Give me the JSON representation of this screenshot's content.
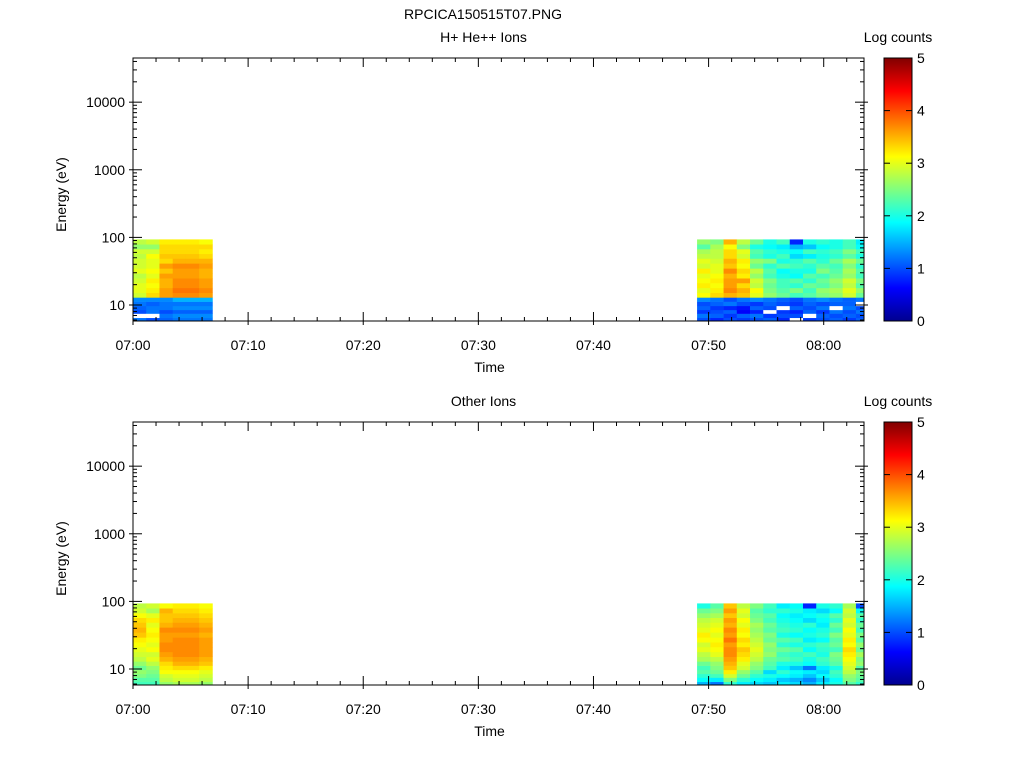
{
  "figure": {
    "title": "RPCICA150515T07.PNG"
  },
  "colormap": {
    "name": "jet",
    "stops": [
      "#00008f",
      "#0000ff",
      "#00ffff",
      "#ffff00",
      "#ff0000",
      "#800000"
    ],
    "empty_color": "#ffffff"
  },
  "chart_data": [
    {
      "type": "heatmap",
      "title": "H+ He++ Ions",
      "xlabel": "Time",
      "ylabel": "Energy (eV)",
      "xticks": [
        "07:00",
        "07:10",
        "07:20",
        "07:30",
        "07:40",
        "07:50",
        "08:00"
      ],
      "xlim_minutes": [
        0,
        63.5
      ],
      "yscale": "log",
      "ylim": [
        5.8,
        45000
      ],
      "yticks": [
        10,
        100,
        1000,
        10000
      ],
      "ytick_labels": [
        "10",
        "100",
        "1000",
        "10000"
      ],
      "colorbar": {
        "label": "Log counts",
        "range": [
          0,
          5
        ],
        "ticks": [
          "0",
          "1",
          "2",
          "3",
          "4",
          "5"
        ]
      },
      "energy_bins": [
        6,
        7,
        8,
        9,
        10.5,
        12,
        14,
        16.5,
        19.5,
        23,
        27,
        32,
        38,
        45,
        53,
        62,
        73,
        86
      ],
      "time_blocks": [
        {
          "start_minute": 0,
          "columns": [
            [
              1.2,
              null,
              1.0,
              1.1,
              1.2,
              1.3,
              2.9,
              3.0,
              3.0,
              2.9,
              2.8,
              3.0,
              2.9,
              2.9,
              2.8,
              2.9,
              2.6,
              2.8
            ],
            [
              1.0,
              null,
              1.2,
              1.2,
              1.1,
              1.3,
              3.3,
              3.2,
              3.1,
              3.2,
              3.0,
              3.1,
              3.0,
              3.0,
              3.1,
              2.9,
              2.6,
              2.9
            ],
            [
              1.1,
              1.2,
              1.0,
              1.2,
              1.2,
              1.3,
              3.6,
              3.6,
              3.5,
              3.5,
              3.6,
              3.4,
              3.6,
              3.3,
              3.4,
              3.3,
              3.3,
              3.2
            ],
            [
              1.2,
              1.3,
              1.1,
              1.3,
              1.2,
              1.5,
              3.7,
              3.8,
              3.7,
              3.7,
              3.6,
              3.6,
              3.7,
              3.5,
              3.4,
              3.3,
              3.3,
              3.2
            ],
            [
              1.2,
              1.3,
              1.1,
              1.3,
              1.2,
              1.5,
              3.7,
              3.8,
              3.7,
              3.7,
              3.6,
              3.6,
              3.7,
              3.5,
              3.4,
              3.3,
              3.3,
              3.2
            ],
            [
              1.2,
              1.3,
              1.1,
              1.3,
              1.2,
              1.5,
              3.6,
              3.7,
              3.6,
              3.6,
              3.5,
              3.5,
              3.6,
              3.5,
              3.3,
              3.2,
              3.3,
              3.1
            ]
          ]
        },
        {
          "start_minute": 49,
          "columns": [
            [
              1.0,
              1.2,
              0.9,
              1.1,
              1.0,
              1.3,
              3.1,
              3.0,
              3.2,
              3.1,
              3.0,
              3.2,
              2.9,
              3.0,
              2.8,
              2.7,
              2.3,
              2.6
            ],
            [
              0.8,
              1.1,
              1.0,
              0.9,
              1.1,
              1.2,
              3.3,
              3.2,
              3.1,
              3.2,
              3.1,
              3.0,
              3.0,
              2.9,
              2.8,
              2.8,
              2.7,
              2.5
            ],
            [
              1.0,
              0.9,
              1.1,
              0.8,
              1.2,
              1.0,
              3.5,
              3.7,
              3.6,
              3.6,
              3.5,
              3.7,
              3.4,
              3.5,
              3.3,
              3.3,
              3.1,
              3.5
            ],
            [
              0.9,
              1.1,
              0.6,
              0.7,
              1.0,
              1.2,
              3.4,
              3.5,
              3.3,
              3.6,
              3.2,
              3.3,
              3.1,
              3.2,
              2.9,
              3.0,
              2.5,
              2.8
            ],
            [
              1.0,
              1.2,
              0.8,
              1.1,
              0.9,
              1.3,
              3.0,
              3.1,
              2.8,
              2.9,
              2.6,
              2.8,
              2.4,
              2.6,
              2.2,
              2.3,
              2.0,
              2.4
            ],
            [
              1.1,
              0.9,
              null,
              1.0,
              1.1,
              1.2,
              2.6,
              2.5,
              2.4,
              2.5,
              2.2,
              2.3,
              2.1,
              2.5,
              2.0,
              2.1,
              1.9,
              2.0
            ],
            [
              0.8,
              1.0,
              0.9,
              null,
              1.0,
              1.1,
              2.4,
              2.3,
              2.2,
              2.2,
              2.0,
              1.9,
              2.3,
              2.0,
              2.2,
              2.0,
              1.8,
              2.2
            ],
            [
              null,
              1.0,
              0.8,
              1.1,
              0.9,
              1.0,
              2.2,
              2.5,
              2.1,
              2.3,
              1.9,
              2.0,
              2.2,
              2.1,
              1.7,
              1.9,
              1.5,
              0.8
            ],
            [
              0.9,
              null,
              1.1,
              1.0,
              1.1,
              1.2,
              2.3,
              2.2,
              2.4,
              2.1,
              2.3,
              2.0,
              2.1,
              2.3,
              1.8,
              2.2,
              1.6,
              2.0
            ],
            [
              1.0,
              1.1,
              0.9,
              1.2,
              1.0,
              1.3,
              2.5,
              2.6,
              2.3,
              2.4,
              2.2,
              2.5,
              2.3,
              2.1,
              2.0,
              2.1,
              1.9,
              2.1
            ],
            [
              1.1,
              1.0,
              1.2,
              null,
              1.1,
              1.2,
              2.6,
              2.7,
              2.5,
              2.6,
              2.4,
              2.3,
              2.2,
              2.4,
              2.1,
              2.2,
              2.0,
              2.0
            ],
            [
              0.9,
              1.1,
              1.0,
              1.2,
              1.1,
              1.1,
              2.9,
              3.0,
              2.8,
              2.9,
              2.6,
              2.7,
              2.5,
              2.7,
              2.3,
              2.5,
              2.2,
              2.2
            ],
            [
              1.1,
              1.0,
              1.2,
              1.0,
              null,
              1.2,
              2.4,
              2.6,
              2.3,
              2.5,
              2.2,
              2.3,
              2.1,
              2.4,
              2.0,
              2.2,
              1.9,
              1.8
            ]
          ]
        }
      ]
    },
    {
      "type": "heatmap",
      "title": "Other Ions",
      "xlabel": "Time",
      "ylabel": "Energy (eV)",
      "xticks": [
        "07:00",
        "07:10",
        "07:20",
        "07:30",
        "07:40",
        "07:50",
        "08:00"
      ],
      "xlim_minutes": [
        0,
        63.5
      ],
      "yscale": "log",
      "ylim": [
        5.8,
        45000
      ],
      "yticks": [
        10,
        100,
        1000,
        10000
      ],
      "ytick_labels": [
        "10",
        "100",
        "1000",
        "10000"
      ],
      "colorbar": {
        "label": "Log counts",
        "range": [
          0,
          5
        ],
        "ticks": [
          "0",
          "1",
          "2",
          "3",
          "4",
          "5"
        ]
      },
      "energy_bins": [
        6,
        7,
        8,
        9,
        10.5,
        12,
        14,
        16.5,
        19.5,
        23,
        27,
        32,
        38,
        45,
        53,
        62,
        73,
        86
      ],
      "time_blocks": [
        {
          "start_minute": 0,
          "columns": [
            [
              2.2,
              2.3,
              2.5,
              2.6,
              2.4,
              2.6,
              2.8,
              2.9,
              3.0,
              3.1,
              3.2,
              3.4,
              3.5,
              3.4,
              3.3,
              3.1,
              2.9,
              2.8
            ],
            [
              2.2,
              2.3,
              2.4,
              2.5,
              2.6,
              2.8,
              3.0,
              2.9,
              3.1,
              3.0,
              3.1,
              3.2,
              3.1,
              3.0,
              3.2,
              3.0,
              2.7,
              2.9
            ],
            [
              2.6,
              2.8,
              2.9,
              3.1,
              3.2,
              3.3,
              3.5,
              3.6,
              3.7,
              3.7,
              3.6,
              3.6,
              3.7,
              3.5,
              3.4,
              3.4,
              3.5,
              3.1
            ],
            [
              2.7,
              2.9,
              3.0,
              3.1,
              3.3,
              3.5,
              3.6,
              3.7,
              3.7,
              3.7,
              3.7,
              3.6,
              3.7,
              3.6,
              3.5,
              3.4,
              3.3,
              3.2
            ],
            [
              2.7,
              2.9,
              3.0,
              3.1,
              3.3,
              3.5,
              3.6,
              3.7,
              3.7,
              3.7,
              3.7,
              3.6,
              3.7,
              3.6,
              3.5,
              3.4,
              3.3,
              3.2
            ],
            [
              2.6,
              2.8,
              2.9,
              3.0,
              3.2,
              3.4,
              3.5,
              3.6,
              3.6,
              3.6,
              3.6,
              3.5,
              3.6,
              3.5,
              3.4,
              3.3,
              3.2,
              3.1
            ]
          ]
        },
        {
          "start_minute": 49,
          "columns": [
            [
              1.5,
              1.9,
              2.1,
              2.3,
              2.2,
              2.4,
              2.7,
              2.8,
              3.0,
              2.9,
              3.1,
              3.2,
              3.0,
              2.9,
              2.8,
              2.6,
              2.4,
              2.0
            ],
            [
              1.2,
              1.8,
              2.2,
              2.4,
              2.5,
              2.6,
              2.8,
              3.0,
              3.1,
              3.2,
              3.1,
              3.0,
              3.1,
              3.0,
              2.9,
              2.7,
              2.5,
              2.3
            ],
            [
              2.1,
              2.5,
              2.9,
              3.2,
              3.4,
              3.5,
              3.6,
              3.7,
              3.7,
              3.6,
              3.8,
              3.6,
              3.7,
              3.5,
              3.6,
              3.4,
              3.6,
              3.4
            ],
            [
              1.8,
              2.1,
              2.4,
              2.6,
              2.9,
              3.0,
              3.2,
              3.3,
              3.4,
              3.2,
              3.3,
              3.1,
              3.2,
              3.0,
              3.1,
              2.9,
              3.0,
              2.8
            ],
            [
              1.7,
              1.9,
              2.1,
              2.3,
              2.5,
              2.6,
              2.8,
              2.9,
              3.0,
              2.9,
              2.8,
              2.7,
              2.6,
              2.7,
              2.5,
              2.4,
              2.3,
              2.5
            ],
            [
              1.6,
              1.8,
              2.0,
              1.7,
              2.2,
              2.3,
              2.4,
              2.6,
              2.5,
              2.6,
              2.4,
              2.5,
              2.3,
              2.4,
              2.2,
              2.3,
              2.1,
              2.2
            ],
            [
              1.8,
              1.6,
              1.9,
              2.1,
              1.8,
              2.0,
              2.3,
              2.2,
              2.4,
              2.1,
              2.3,
              2.0,
              2.2,
              2.1,
              2.0,
              1.9,
              2.1,
              1.8
            ],
            [
              1.7,
              1.5,
              1.8,
              1.9,
              1.6,
              2.0,
              2.2,
              2.1,
              2.3,
              2.0,
              2.2,
              1.9,
              2.1,
              2.0,
              1.9,
              1.8,
              2.0,
              1.9
            ],
            [
              1.5,
              1.3,
              1.6,
              1.8,
              1.2,
              1.9,
              2.0,
              2.2,
              1.9,
              2.1,
              1.8,
              2.0,
              1.9,
              2.1,
              1.7,
              1.9,
              1.8,
              0.8
            ],
            [
              1.8,
              1.6,
              1.9,
              1.7,
              1.8,
              2.1,
              2.2,
              2.0,
              2.1,
              2.2,
              1.9,
              2.1,
              2.0,
              1.8,
              1.9,
              2.0,
              1.7,
              2.0
            ],
            [
              2.0,
              1.9,
              2.1,
              2.2,
              2.0,
              2.3,
              2.4,
              2.5,
              2.2,
              2.4,
              2.3,
              2.5,
              2.2,
              2.4,
              2.1,
              2.3,
              1.9,
              2.1
            ],
            [
              2.3,
              2.5,
              2.6,
              2.8,
              2.9,
              3.0,
              3.1,
              3.2,
              3.3,
              3.1,
              3.2,
              3.0,
              3.1,
              2.9,
              3.0,
              2.8,
              2.9,
              2.7
            ],
            [
              2.1,
              2.3,
              2.4,
              2.5,
              2.3,
              2.6,
              2.5,
              2.7,
              2.4,
              2.6,
              2.3,
              2.5,
              2.2,
              2.4,
              2.1,
              2.3,
              1.9,
              1.0
            ]
          ]
        }
      ]
    }
  ]
}
